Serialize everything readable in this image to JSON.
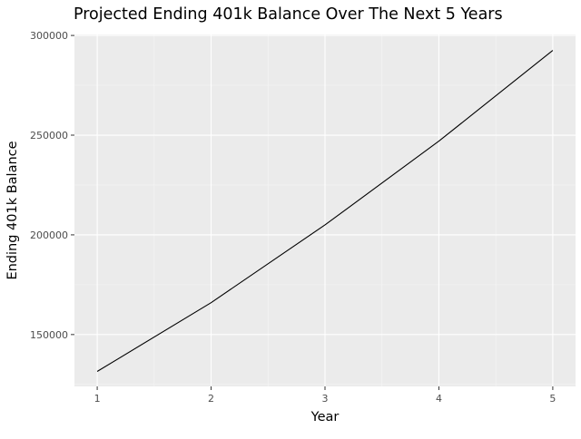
{
  "chart_data": {
    "type": "line",
    "title": "Projected Ending 401k Balance Over The Next 5 Years",
    "xlabel": "Year",
    "ylabel": "Ending 401k Balance",
    "x": [
      1,
      2,
      3,
      4,
      5
    ],
    "series": [
      {
        "values": [
          131500,
          166000,
          205000,
          247000,
          292500
        ],
        "color": "#000000"
      }
    ],
    "x_ticks": [
      1,
      2,
      3,
      4,
      5
    ],
    "y_ticks": [
      150000,
      200000,
      250000,
      300000
    ],
    "xlim": [
      0.8,
      5.2
    ],
    "ylim": [
      124000,
      300500
    ],
    "grid": true,
    "legend": "none",
    "theme": "ggplot-grey",
    "colors": {
      "panel_background": "#ebebeb",
      "grid_major": "#ffffff",
      "grid_minor": "#f5f5f5",
      "tick_text": "#4d4d4d",
      "axis_title": "#000000"
    }
  }
}
